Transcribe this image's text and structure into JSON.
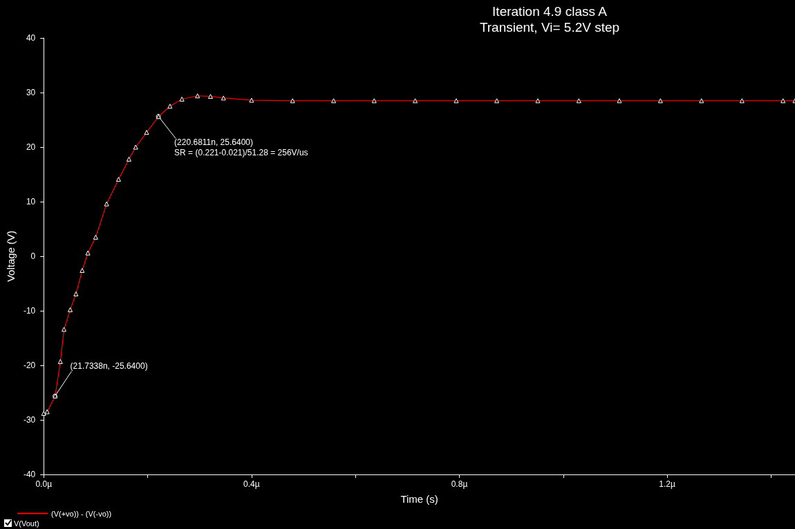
{
  "chart_data": {
    "type": "line",
    "title": "Iteration 4.9 class A",
    "subtitle": "Transient, Vi= 5.2V step",
    "xlabel": "Time (s)",
    "ylabel": "Voltage (V)",
    "series": [
      {
        "name": "(V(+vo)) - (V(-vo))",
        "color": "#ff0000",
        "x": [
          0,
          0.0066,
          0.022,
          0.032,
          0.039,
          0.051,
          0.062,
          0.074,
          0.085,
          0.1,
          0.121,
          0.144,
          0.164,
          0.177,
          0.198,
          0.221,
          0.243,
          0.266,
          0.296,
          0.321,
          0.346,
          0.4,
          0.479,
          0.558,
          0.636,
          0.715,
          0.794,
          0.872,
          0.951,
          1.03,
          1.108,
          1.187,
          1.266,
          1.344,
          1.423,
          1.446
        ],
        "values": [
          -28.8,
          -28.5,
          -25.6,
          -19.3,
          -13.4,
          -9.8,
          -6.9,
          -2.6,
          0.6,
          3.5,
          9.6,
          14.1,
          17.8,
          20.0,
          22.7,
          25.6,
          27.5,
          28.8,
          29.4,
          29.3,
          29.0,
          28.6,
          28.5,
          28.5,
          28.5,
          28.5,
          28.5,
          28.5,
          28.5,
          28.5,
          28.5,
          28.5,
          28.5,
          28.5,
          28.5,
          28.5
        ]
      }
    ],
    "xlim": [
      0,
      1.446
    ],
    "xticks": [
      {
        "value": 0,
        "label": "0.0µ"
      },
      {
        "value": 0.2,
        "label": null
      },
      {
        "value": 0.4,
        "label": "0.4µ"
      },
      {
        "value": 0.6,
        "label": null
      },
      {
        "value": 0.8,
        "label": "0.8µ"
      },
      {
        "value": 1.0,
        "label": null
      },
      {
        "value": 1.2,
        "label": "1.2µ"
      },
      {
        "value": 1.4,
        "label": null
      }
    ],
    "ylim": [
      -40,
      40
    ],
    "yticks": [
      -40,
      -30,
      -20,
      -10,
      0,
      10,
      20,
      30,
      40
    ],
    "annotations": [
      {
        "text": "(21.7338n, -25.6400)",
        "x": 0.0217,
        "y": -25.64
      },
      {
        "text": "(220.6811n, 25.6400)",
        "x": 0.2207,
        "y": 25.64
      },
      "SR = (0.221-0.021)/51.28 = 256V/us",
      "V(Vout)"
    ],
    "grid": false,
    "legend": "bottom left",
    "marker": "triangle",
    "line_style": "solid"
  }
}
